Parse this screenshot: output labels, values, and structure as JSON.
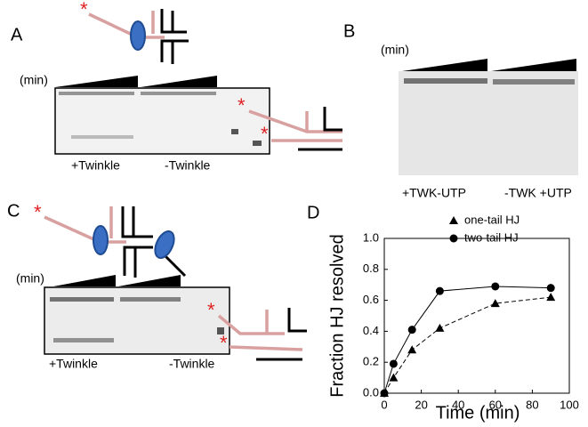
{
  "marker": "*",
  "panels": {
    "A": {
      "label": "A",
      "time_label": "(min)",
      "lanes": [
        "+Twinkle",
        "-Twinkle"
      ]
    },
    "B": {
      "label": "B",
      "time_label": "(min)",
      "lanes": [
        "+TWK-UTP",
        "-TWK +UTP"
      ]
    },
    "C": {
      "label": "C",
      "time_label": "(min)",
      "lanes": [
        "+Twinkle",
        "-Twinkle"
      ]
    },
    "D": {
      "label": "D"
    }
  },
  "chart_data": {
    "type": "line",
    "xlabel": "Time (min)",
    "ylabel": "Fraction HJ resolved",
    "xlim": [
      0,
      100
    ],
    "xticks": [
      0,
      20,
      40,
      60,
      80,
      100
    ],
    "ylim": [
      0,
      1
    ],
    "yticks": [
      {
        "value": 0,
        "label": "0.0"
      },
      0.2,
      0.4,
      0.6,
      0.8,
      {
        "value": 1,
        "label": "1.0"
      }
    ],
    "series": [
      {
        "name": "one-tail HJ",
        "marker": "triangle",
        "line_style": "dashed",
        "color": "#000000",
        "x": [
          0,
          5,
          15,
          30,
          60,
          90
        ],
        "values": [
          0,
          0.1,
          0.28,
          0.42,
          0.58,
          0.62
        ]
      },
      {
        "name": "two-tail HJ",
        "marker": "circle",
        "line_style": "solid",
        "color": "#000000",
        "x": [
          0,
          5,
          15,
          30,
          60,
          90
        ],
        "values": [
          0,
          0.19,
          0.41,
          0.66,
          0.69,
          0.68
        ]
      }
    ]
  }
}
